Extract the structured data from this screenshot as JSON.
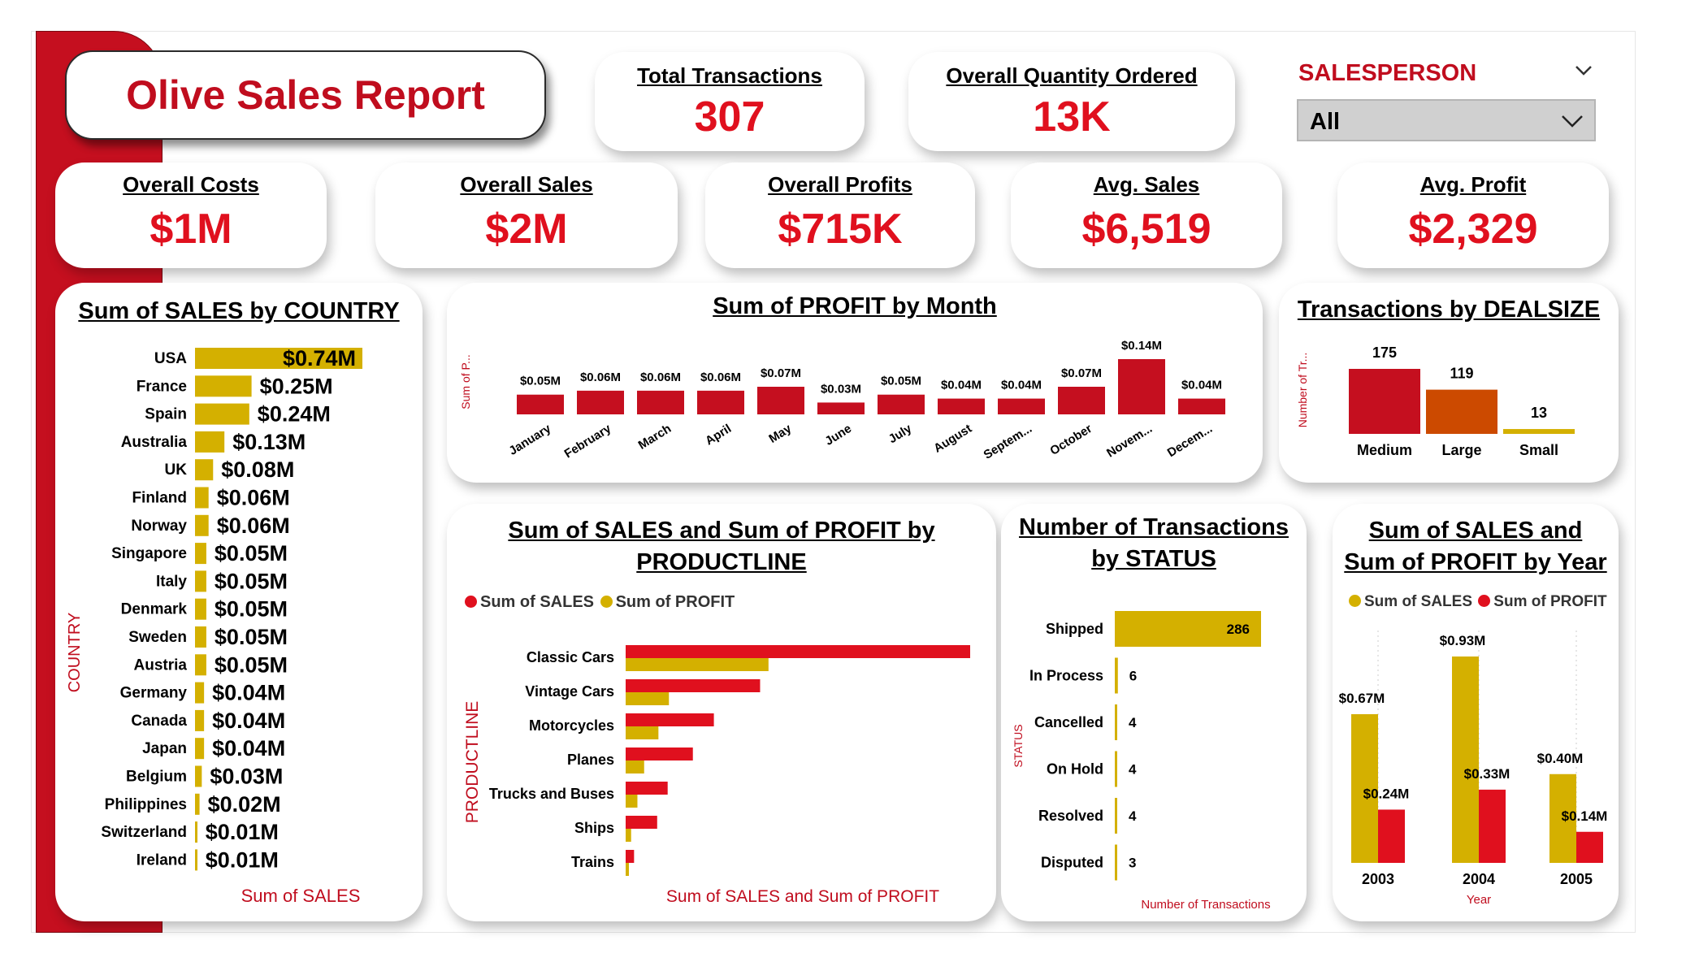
{
  "report_title": "Olive Sales Report",
  "kpis": {
    "total_transactions": {
      "label": "Total Transactions",
      "value": "307"
    },
    "overall_quantity": {
      "label": "Overall Quantity Ordered",
      "value": "13K"
    },
    "overall_costs": {
      "label": "Overall Costs",
      "value": "$1M"
    },
    "overall_sales": {
      "label": "Overall Sales",
      "value": "$2M"
    },
    "overall_profits": {
      "label": "Overall Profits",
      "value": "$715K"
    },
    "avg_sales": {
      "label": "Avg. Sales",
      "value": "$6,519"
    },
    "avg_profit": {
      "label": "Avg. Profit",
      "value": "$2,329"
    }
  },
  "slicer": {
    "label": "SALESPERSON",
    "value": "All",
    "icon": "chevron-down-icon"
  },
  "colors": {
    "red": "#e0101e",
    "dark_red": "#c00d1e",
    "gold": "#d4b000",
    "orange": "#cc4a00"
  },
  "chart_data": [
    {
      "id": "country",
      "type": "bar",
      "orientation": "horizontal",
      "title": "Sum of SALES by COUNTRY",
      "xlabel": "Sum of SALES",
      "ylabel": "COUNTRY",
      "categories": [
        "USA",
        "France",
        "Spain",
        "Australia",
        "UK",
        "Finland",
        "Norway",
        "Singapore",
        "Italy",
        "Denmark",
        "Sweden",
        "Austria",
        "Germany",
        "Canada",
        "Japan",
        "Belgium",
        "Philippines",
        "Switzerland",
        "Ireland"
      ],
      "values": [
        0.74,
        0.25,
        0.24,
        0.13,
        0.08,
        0.06,
        0.06,
        0.05,
        0.05,
        0.05,
        0.05,
        0.05,
        0.04,
        0.04,
        0.04,
        0.03,
        0.02,
        0.01,
        0.01
      ],
      "labels": [
        "$0.74M",
        "$0.25M",
        "$0.24M",
        "$0.13M",
        "$0.08M",
        "$0.06M",
        "$0.06M",
        "$0.05M",
        "$0.05M",
        "$0.05M",
        "$0.05M",
        "$0.05M",
        "$0.04M",
        "$0.04M",
        "$0.04M",
        "$0.03M",
        "$0.02M",
        "$0.01M",
        "$0.01M"
      ],
      "unit": "$M",
      "color": "#d4b000"
    },
    {
      "id": "month",
      "type": "bar",
      "title": "Sum of PROFIT by Month",
      "ylabel": "Sum of P...",
      "categories": [
        "January",
        "February",
        "March",
        "April",
        "May",
        "June",
        "July",
        "August",
        "Septem...",
        "October",
        "Novem...",
        "Decem..."
      ],
      "values": [
        0.05,
        0.06,
        0.06,
        0.06,
        0.07,
        0.03,
        0.05,
        0.04,
        0.04,
        0.07,
        0.14,
        0.04
      ],
      "labels": [
        "$0.05M",
        "$0.06M",
        "$0.06M",
        "$0.06M",
        "$0.07M",
        "$0.03M",
        "$0.05M",
        "$0.04M",
        "$0.04M",
        "$0.07M",
        "$0.14M",
        "$0.04M"
      ],
      "unit": "$M",
      "color": "#c50f1f"
    },
    {
      "id": "dealsize",
      "type": "bar",
      "title": "Transactions by DEALSIZE",
      "ylabel": "Number of Tr...",
      "categories": [
        "Medium",
        "Large",
        "Small"
      ],
      "values": [
        175,
        119,
        13
      ],
      "colors": [
        "#c50f1f",
        "#cc4a00",
        "#d4b000"
      ]
    },
    {
      "id": "productline",
      "type": "bar",
      "orientation": "horizontal",
      "title_line1": "Sum of SALES and Sum of PROFIT by",
      "title_line2": "PRODUCTLINE",
      "xlabel": "Sum of SALES and Sum of PROFIT",
      "ylabel": "PRODUCTLINE",
      "categories": [
        "Classic Cars",
        "Vintage Cars",
        "Motorcycles",
        "Planes",
        "Trucks and Buses",
        "Ships",
        "Trains"
      ],
      "series": [
        {
          "name": "Sum of SALES",
          "color": "#e0101e",
          "values": [
            0.82,
            0.32,
            0.21,
            0.16,
            0.1,
            0.075,
            0.02
          ]
        },
        {
          "name": "Sum of PROFIT",
          "color": "#d4b000",
          "values": [
            0.34,
            0.103,
            0.078,
            0.044,
            0.028,
            0.013,
            0.005
          ]
        }
      ],
      "unit": "$M"
    },
    {
      "id": "status",
      "type": "bar",
      "orientation": "horizontal",
      "title_line1": "Number of Transactions",
      "title_line2": "by STATUS",
      "xlabel": "Number of Transactions",
      "ylabel": "STATUS",
      "categories": [
        "Shipped",
        "In Process",
        "Cancelled",
        "On Hold",
        "Resolved",
        "Disputed"
      ],
      "values": [
        286,
        6,
        4,
        4,
        4,
        3
      ],
      "color": "#d4b000"
    },
    {
      "id": "year",
      "type": "bar",
      "title_line1": "Sum of SALES and",
      "title_line2": "Sum of PROFIT by Year",
      "xlabel": "Year",
      "categories": [
        "2003",
        "2004",
        "2005"
      ],
      "series": [
        {
          "name": "Sum of SALES",
          "color": "#d4b000",
          "values": [
            0.67,
            0.93,
            0.4
          ],
          "labels": [
            "$0.67M",
            "$0.93M",
            "$0.40M"
          ]
        },
        {
          "name": "Sum of PROFIT",
          "color": "#e0101e",
          "values": [
            0.24,
            0.33,
            0.14
          ],
          "labels": [
            "$0.24M",
            "$0.33M",
            "$0.14M"
          ]
        }
      ],
      "unit": "$M"
    }
  ]
}
